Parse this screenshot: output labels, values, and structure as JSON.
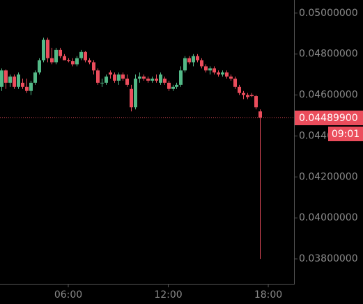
{
  "chart_data": {
    "type": "candlestick",
    "x": [
      2.0,
      2.25,
      2.5,
      2.75,
      3.0,
      3.25,
      3.5,
      3.75,
      4.0,
      4.25,
      4.5,
      4.75,
      5.0,
      5.25,
      5.5,
      5.75,
      6.0,
      6.25,
      6.5,
      6.75,
      7.0,
      7.25,
      7.5,
      7.75,
      8.0,
      8.25,
      8.5,
      8.75,
      9.0,
      9.25,
      9.5,
      9.75,
      10.0,
      10.25,
      10.5,
      10.75,
      11.0,
      11.25,
      11.5,
      11.75,
      12.0,
      12.25,
      12.5,
      12.75,
      13.0,
      13.25,
      13.5,
      13.75,
      14.0,
      14.25,
      14.5,
      14.75,
      15.0,
      15.25,
      15.5,
      15.75,
      16.0,
      16.25,
      16.5,
      16.75,
      17.0,
      17.25,
      17.5
    ],
    "open": [
      0.0464,
      0.0472,
      0.0466,
      0.0469,
      0.0464,
      0.0466,
      0.0464,
      0.0462,
      0.0466,
      0.0471,
      0.0477,
      0.0487,
      0.0478,
      0.0476,
      0.0482,
      0.0479,
      0.0477,
      0.04765,
      0.0475,
      0.0478,
      0.0481,
      0.0477,
      0.0476,
      0.0472,
      0.0466,
      0.0466,
      0.0471,
      0.047,
      0.0467,
      0.047,
      0.0468,
      0.0463,
      0.0454,
      0.0468,
      0.0469,
      0.0468,
      0.0467,
      0.0468,
      0.0466,
      0.0468,
      0.0466,
      0.0463,
      0.0464,
      0.0465,
      0.0472,
      0.0478,
      0.0476,
      0.0479,
      0.0477,
      0.0474,
      0.0472,
      0.0473,
      0.0471,
      0.047,
      0.0471,
      0.0469,
      0.0468,
      0.0464,
      0.0461,
      0.046,
      0.046,
      0.04595,
      0.0452
    ],
    "high": [
      0.0473,
      0.04725,
      0.047,
      0.047,
      0.0471,
      0.0468,
      0.0468,
      0.0467,
      0.0472,
      0.0478,
      0.0488,
      0.0488,
      0.0483,
      0.0483,
      0.0483,
      0.048,
      0.0478,
      0.0478,
      0.0479,
      0.0482,
      0.04815,
      0.0478,
      0.0477,
      0.0473,
      0.0468,
      0.047,
      0.0472,
      0.0471,
      0.0471,
      0.0471,
      0.047,
      0.0465,
      0.047,
      0.0471,
      0.047,
      0.0469,
      0.0469,
      0.047,
      0.0471,
      0.0469,
      0.0467,
      0.0465,
      0.0466,
      0.0474,
      0.0479,
      0.0479,
      0.048,
      0.048,
      0.0478,
      0.0475,
      0.0474,
      0.0474,
      0.0472,
      0.0472,
      0.0472,
      0.047,
      0.0469,
      0.0465,
      0.0462,
      0.0461,
      0.0461,
      0.046,
      0.0453
    ],
    "low": [
      0.0462,
      0.0463,
      0.0464,
      0.0463,
      0.0463,
      0.0463,
      0.0461,
      0.046,
      0.0465,
      0.047,
      0.0476,
      0.0476,
      0.0475,
      0.0475,
      0.0478,
      0.0477,
      0.0476,
      0.0474,
      0.0474,
      0.0477,
      0.0476,
      0.0475,
      0.047,
      0.0465,
      0.0464,
      0.0465,
      0.0468,
      0.0466,
      0.0465,
      0.0467,
      0.0464,
      0.0452,
      0.0453,
      0.0466,
      0.0467,
      0.0466,
      0.0466,
      0.0466,
      0.0465,
      0.0465,
      0.0462,
      0.0462,
      0.0463,
      0.0464,
      0.0471,
      0.0475,
      0.0474,
      0.0476,
      0.0473,
      0.0471,
      0.047,
      0.047,
      0.0469,
      0.0469,
      0.0468,
      0.0467,
      0.0463,
      0.046,
      0.0458,
      0.0458,
      0.0459,
      0.0453,
      0.038
    ],
    "close": [
      0.0472,
      0.0466,
      0.0469,
      0.0464,
      0.047,
      0.0464,
      0.0462,
      0.0466,
      0.0471,
      0.0477,
      0.0487,
      0.0478,
      0.0476,
      0.0482,
      0.0479,
      0.0477,
      0.04765,
      0.0475,
      0.0478,
      0.0481,
      0.0477,
      0.0476,
      0.0472,
      0.0466,
      0.0466,
      0.0469,
      0.047,
      0.0467,
      0.047,
      0.0468,
      0.0465,
      0.0454,
      0.0468,
      0.0469,
      0.0468,
      0.0467,
      0.0468,
      0.0467,
      0.047,
      0.0466,
      0.0463,
      0.0464,
      0.0465,
      0.0472,
      0.0478,
      0.0476,
      0.0479,
      0.0477,
      0.0474,
      0.0472,
      0.0473,
      0.0471,
      0.047,
      0.0471,
      0.0469,
      0.0468,
      0.0464,
      0.0461,
      0.046,
      0.0459,
      0.04595,
      0.0454,
      0.044899
    ],
    "up_color": "#53b987",
    "down_color": "#eb4d5c",
    "xlim": [
      1.903,
      19.545
    ],
    "xticks": [
      {
        "value": 6,
        "label": "06:00"
      },
      {
        "value": 12,
        "label": "12:00"
      },
      {
        "value": 18,
        "label": "18:00"
      }
    ],
    "ylim": [
      0.03678,
      0.05064
    ],
    "yticks": [
      {
        "value": 0.038,
        "label": "0.03800000"
      },
      {
        "value": 0.04,
        "label": "0.04000000"
      },
      {
        "value": 0.042,
        "label": "0.04200000"
      },
      {
        "value": 0.044,
        "label": "0.04400000"
      },
      {
        "value": 0.046,
        "label": "0.04600000"
      },
      {
        "value": 0.048,
        "label": "0.04800000"
      },
      {
        "value": 0.05,
        "label": "0.05000000"
      }
    ],
    "last_price": {
      "value": 0.044899,
      "label": "0.04489900"
    },
    "countdown": "09:01"
  }
}
